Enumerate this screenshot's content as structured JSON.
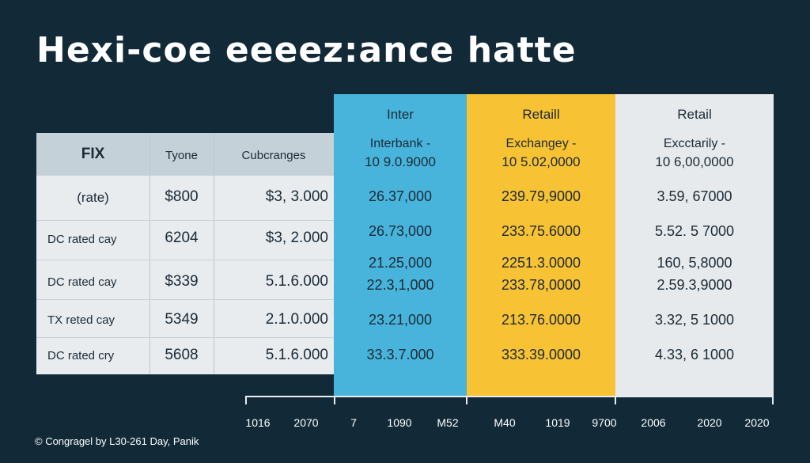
{
  "title": "Hexi-coe eeeez:ance hatte",
  "left_table": {
    "headers": [
      "FIX",
      "Tyone",
      "Cubcranges"
    ],
    "rows": [
      [
        "(rate)",
        "$800",
        "$3, 3.000"
      ],
      [
        "DC rated cay",
        "6204",
        "$3, 2.000"
      ],
      [
        "DC rated cay",
        "$339",
        "5.1.6.000"
      ],
      [
        "TX reted cay",
        "5349",
        "2.1.0.000"
      ],
      [
        "DC rated cry",
        "5608",
        "5.1.6.000"
      ]
    ]
  },
  "columns": [
    {
      "header": "Inter",
      "sub": "Interbank -",
      "sub_value": "10 9.0.9000",
      "values": [
        "26.37,000",
        "26.73,000",
        "21.25,000",
        "22.3,1,000",
        "23.21,000",
        "33.3.7.000"
      ]
    },
    {
      "header": "Retaill",
      "sub": "Exchangey -",
      "sub_value": "10 5.02,0000",
      "values": [
        "239.79,9000",
        "233.75.6000",
        "2251.3.0000",
        "233.78,0000",
        "213.76.0000",
        "333.39.0000"
      ]
    },
    {
      "header": "Retail",
      "sub": "Excctarily -",
      "sub_value": "10 6,00,0000",
      "values": [
        "3.59, 67000",
        "5.52. 5 7000",
        "160, 5,8000",
        "2.59.3,9000",
        "3.32, 5 1000",
        "4.33, 6 1000"
      ]
    }
  ],
  "axis_labels": [
    "1016",
    "2070",
    "7",
    "1090",
    "M52",
    "M40",
    "1019",
    "9700",
    "2006",
    "2020",
    "2020"
  ],
  "copyright": "© Congragel by L30-261 Day, Panik",
  "colors": {
    "background": "#122a38",
    "inter": "#48b4dc",
    "retail_yellow": "#f7c233",
    "retail_grey": "#e6eaec"
  }
}
